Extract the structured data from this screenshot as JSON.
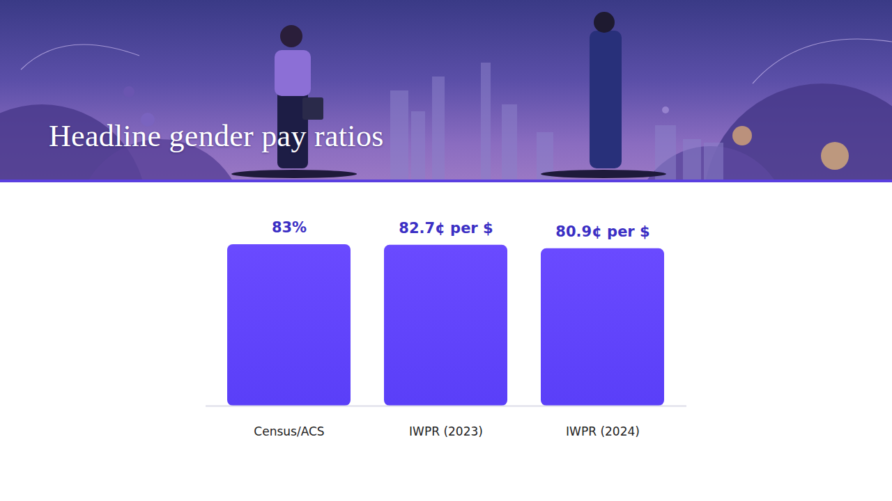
{
  "chart_data": {
    "type": "bar",
    "title": "Headline gender pay ratios",
    "categories": [
      "Census/ACS",
      "IWPR (2023)",
      "IWPR (2024)"
    ],
    "values": [
      83,
      82.7,
      80.9
    ],
    "value_labels": [
      "83%",
      "82.7¢ per $",
      "80.9¢ per $"
    ],
    "color": "#5a3ff8",
    "ylim": [
      0,
      83
    ],
    "data_labels": true,
    "tick_labels": "x",
    "grid": false
  }
}
